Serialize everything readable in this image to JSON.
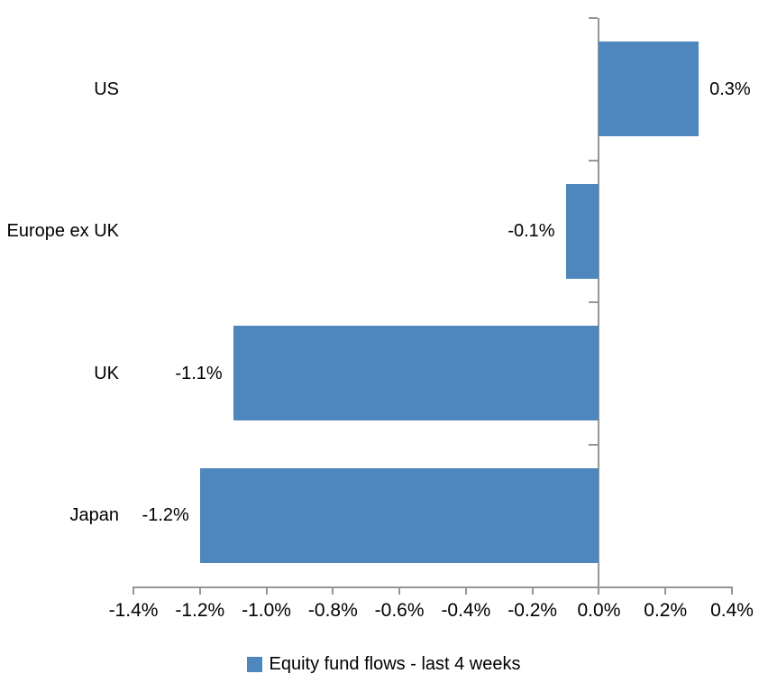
{
  "chart_data": {
    "type": "bar",
    "orientation": "horizontal",
    "categories": [
      "US",
      "Europe ex UK",
      "UK",
      "Japan"
    ],
    "values": [
      0.3,
      -0.1,
      -1.1,
      -1.2
    ],
    "value_labels": [
      "0.3%",
      "-0.1%",
      "-1.1%",
      "-1.2%"
    ],
    "x_axis": {
      "min": -1.4,
      "max": 0.4,
      "tick_step": 0.2,
      "tick_labels": [
        "-1.4%",
        "-1.2%",
        "-1.0%",
        "-0.8%",
        "-0.6%",
        "-0.4%",
        "-0.2%",
        "0.0%",
        "0.2%",
        "0.4%"
      ]
    },
    "legend": {
      "position": "bottom",
      "entries": [
        {
          "label": "Equity fund flows - last 4 weeks",
          "color": "#4d87be"
        }
      ]
    },
    "grid": false,
    "colors": {
      "bar": "#4d87be",
      "axis": "#969696",
      "text": "#000000",
      "background": "#ffffff"
    }
  }
}
